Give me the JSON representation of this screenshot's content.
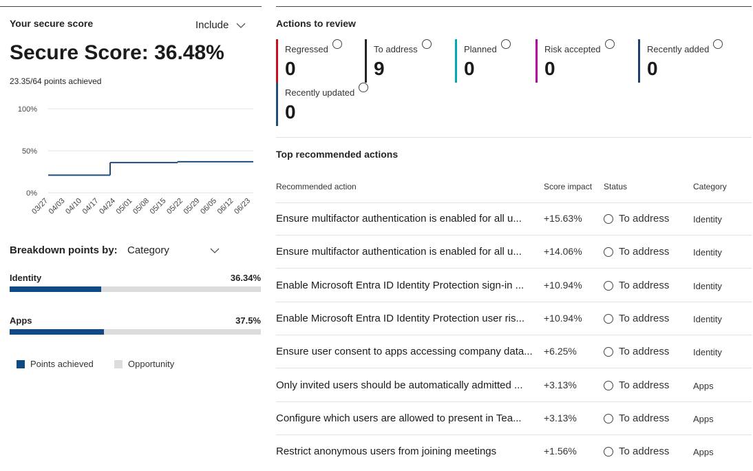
{
  "score_panel": {
    "title": "Your secure score",
    "filter": "Include",
    "score": "Secure Score: 36.48%",
    "points": "23.35/64 points achieved"
  },
  "chart_data": {
    "type": "line",
    "x": [
      "03/27",
      "04/03",
      "04/10",
      "04/17",
      "04/24",
      "05/01",
      "05/08",
      "05/15",
      "05/22",
      "05/29",
      "06/05",
      "06/12",
      "06/23"
    ],
    "series": [
      {
        "color": "#1f4e79",
        "values": [
          21,
          21,
          21,
          21,
          36,
          36,
          36,
          36,
          37,
          37,
          37,
          37,
          37
        ]
      }
    ],
    "ylim": [
      0,
      100
    ],
    "yticks": [
      {
        "value": 0,
        "label": "0%"
      },
      {
        "value": 50,
        "label": "50%"
      },
      {
        "value": 100,
        "label": "100%"
      }
    ],
    "grid": true
  },
  "breakdown": {
    "label": "Breakdown points by:",
    "selection": "Category",
    "xlim": [
      0,
      100
    ],
    "items": [
      {
        "name": "Identity",
        "value": 36.34,
        "value_label": "36.34%"
      },
      {
        "name": "Apps",
        "value": 37.5,
        "value_label": "37.5%"
      }
    ],
    "legend": [
      {
        "name": "Points achieved",
        "color": "#0f4a85"
      },
      {
        "name": "Opportunity",
        "color": "#dcdcdc"
      }
    ]
  },
  "actions_review": {
    "title": "Actions to review",
    "tiles": [
      {
        "label": "Regressed",
        "count": 0,
        "color": "#c50f1f"
      },
      {
        "label": "To address",
        "count": 9,
        "color": "#252423"
      },
      {
        "label": "Planned",
        "count": 0,
        "color": "#00a8b5"
      },
      {
        "label": "Risk accepted",
        "count": 0,
        "color": "#b4009e"
      },
      {
        "label": "Recently added",
        "count": 0,
        "color": "#1f3f6e"
      },
      {
        "label": "Recently updated",
        "count": 0,
        "color": "#1f4e79"
      }
    ]
  },
  "recommended": {
    "title": "Top recommended actions",
    "columns": [
      "Recommended action",
      "Score impact",
      "Status",
      "Category"
    ],
    "rows": [
      [
        "Ensure multifactor authentication is enabled for all u...",
        "+15.63%",
        "To address",
        "Identity"
      ],
      [
        "Ensure multifactor authentication is enabled for all u...",
        "+14.06%",
        "To address",
        "Identity"
      ],
      [
        "Enable Microsoft Entra ID Identity Protection sign-in ...",
        "+10.94%",
        "To address",
        "Identity"
      ],
      [
        "Enable Microsoft Entra ID Identity Protection user ris...",
        "+10.94%",
        "To address",
        "Identity"
      ],
      [
        "Ensure user consent to apps accessing company data...",
        "+6.25%",
        "To address",
        "Identity"
      ],
      [
        "Only invited users should be automatically admitted ...",
        "+3.13%",
        "To address",
        "Apps"
      ],
      [
        "Configure which users are allowed to present in Tea...",
        "+3.13%",
        "To address",
        "Apps"
      ],
      [
        "Restrict anonymous users from joining meetings",
        "+1.56%",
        "To address",
        "Apps"
      ]
    ]
  }
}
